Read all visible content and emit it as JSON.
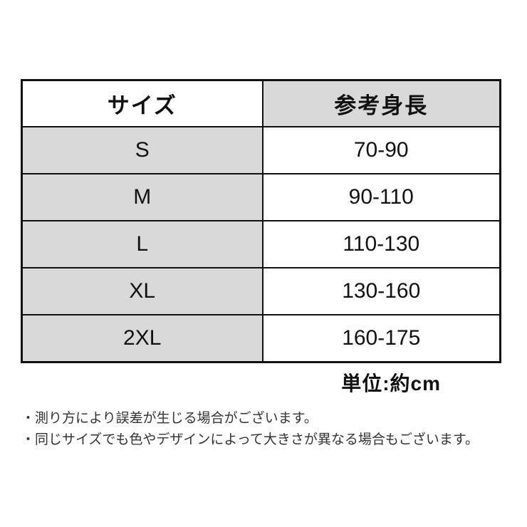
{
  "table": {
    "headers": {
      "size": "サイズ",
      "reference_height": "参考身長"
    },
    "rows": [
      {
        "size": "S",
        "height_range": "70-90"
      },
      {
        "size": "M",
        "height_range": "90-110"
      },
      {
        "size": "L",
        "height_range": "110-130"
      },
      {
        "size": "XL",
        "height_range": "130-160"
      },
      {
        "size": "2XL",
        "height_range": "160-175"
      }
    ],
    "unit_note": "単位:約cm"
  },
  "captions": [
    "・測り方により誤差が生じる場合がございます。",
    "・同じサイズでも色やデザインによって大きさが異なる場合もございます。"
  ],
  "colors": {
    "cell_gray": "#d9d9d9",
    "cell_white": "#ffffff",
    "border": "#111111",
    "text": "#111111",
    "caption_text": "#333333"
  }
}
